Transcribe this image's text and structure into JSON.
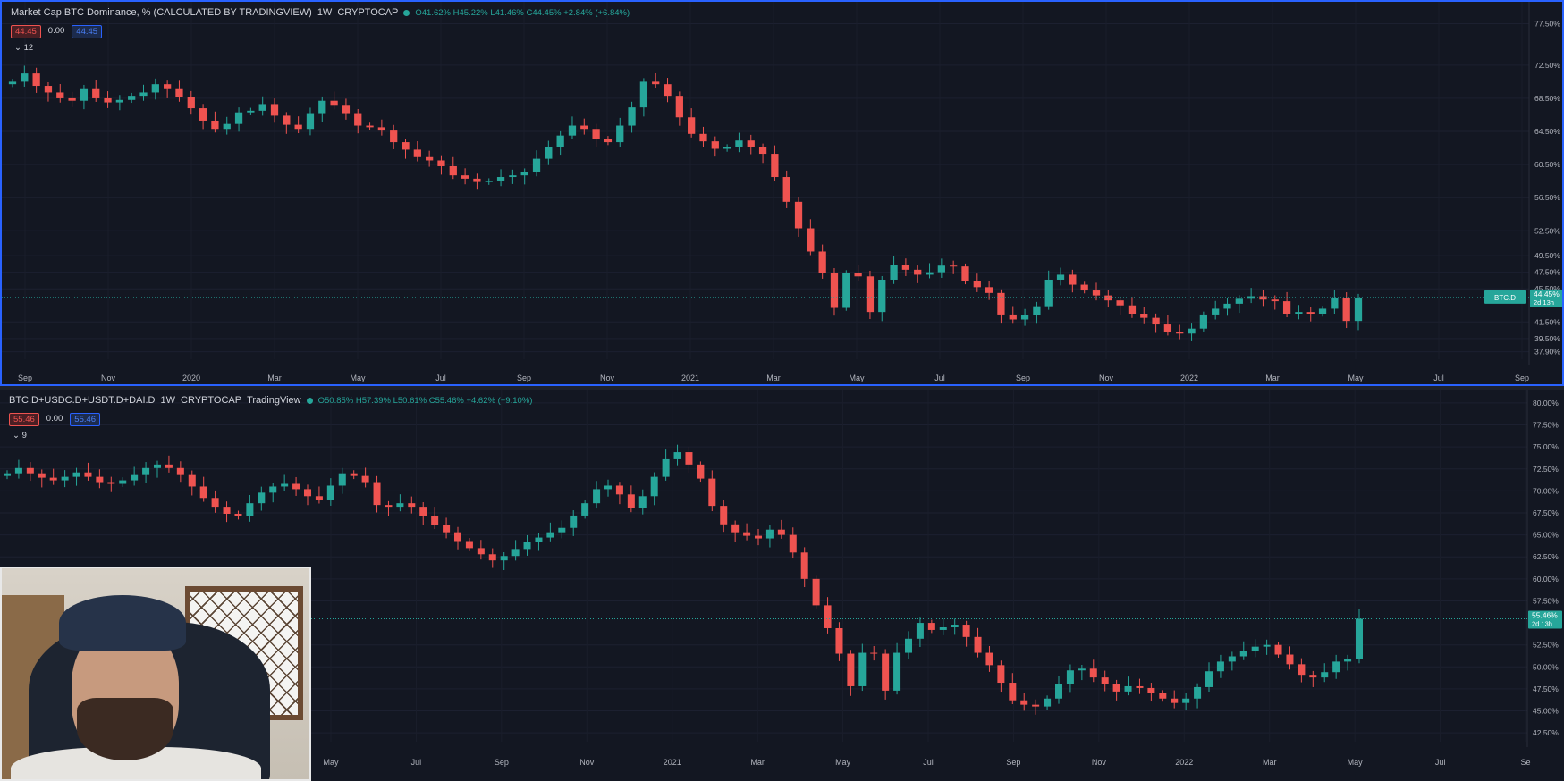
{
  "pane1": {
    "title": "Market Cap BTC Dominance, % (CALCULATED BY TRADINGVIEW)",
    "interval": "1W",
    "source": "CRYPTOCAP",
    "ohlc": "O41.62% H45.22% L41.46% C44.45% +2.84% (+6.84%)",
    "val_red": "44.45",
    "val_zero": "0.00",
    "val_blue": "44.45",
    "indicator": "12",
    "price_tag": "BTC.D",
    "price_tag_value": "44.45%",
    "price_tag_countdown": "2d 13h"
  },
  "pane2": {
    "title": "BTC.D+USDC.D+USDT.D+DAI.D",
    "interval": "1W",
    "source": "CRYPTOCAP",
    "extra": "TradingView",
    "ohlc": "O50.85% H57.39% L50.61% C55.46% +4.62% (+9.10%)",
    "val_red": "55.46",
    "val_zero": "0.00",
    "val_blue": "55.46",
    "indicator": "9",
    "price_tag_value": "55.46%",
    "price_tag_countdown": "2d 13h"
  },
  "colors": {
    "up": "#26a69a",
    "down": "#ef5350",
    "background": "#131722",
    "axis_text": "#b2b5be",
    "selection": "#2962ff"
  },
  "chart_data": [
    {
      "type": "candlestick",
      "title": "Market Cap BTC Dominance, % (CALCULATED BY TRADINGVIEW)",
      "interval": "1W",
      "x_tick_labels": [
        "Sep",
        "Nov",
        "2020",
        "Mar",
        "May",
        "Jul",
        "Sep",
        "Nov",
        "2021",
        "Mar",
        "May",
        "Jul",
        "Sep",
        "Nov",
        "2022",
        "Mar",
        "May",
        "Jul",
        "Sep"
      ],
      "y_tick_labels": [
        "77.50%",
        "72.50%",
        "68.50%",
        "64.50%",
        "60.50%",
        "56.50%",
        "52.50%",
        "49.50%",
        "47.50%",
        "45.50%",
        "41.50%",
        "39.50%",
        "37.90%"
      ],
      "y_ticks": [
        77.5,
        72.5,
        68.5,
        64.5,
        60.5,
        56.5,
        52.5,
        49.5,
        47.5,
        45.5,
        41.5,
        39.5,
        37.9
      ],
      "ylim": [
        37.0,
        78.2
      ],
      "close_series": [
        70.5,
        71.5,
        70,
        69.2,
        68.5,
        68.2,
        69.6,
        68.5,
        68,
        68.3,
        68.8,
        69.2,
        70.2,
        69.6,
        68.6,
        67.3,
        65.8,
        64.8,
        65.4,
        66.8,
        67,
        67.8,
        66.4,
        65.3,
        64.8,
        66.6,
        68.2,
        67.6,
        66.6,
        65.2,
        65,
        64.6,
        63.2,
        62.3,
        61.4,
        61,
        60.3,
        59.2,
        58.8,
        58.4,
        58.5,
        59,
        59.2,
        59.6,
        61.2,
        62.6,
        64,
        65.2,
        64.8,
        63.6,
        63.2,
        65.2,
        67.4,
        70.5,
        70.2,
        68.8,
        66.2,
        64.2,
        63.3,
        62.4,
        62.6,
        63.4,
        62.6,
        61.8,
        59,
        56,
        52.8,
        50,
        47.4,
        43.2,
        47.4,
        47,
        42.7,
        46.6,
        48.4,
        47.8,
        47.2,
        47.5,
        48.3,
        48.2,
        46.4,
        45.7,
        45,
        42.4,
        41.8,
        42.3,
        43.4,
        46.6,
        47.2,
        46,
        45.3,
        44.7,
        44.1,
        43.5,
        42.5,
        42,
        41.2,
        40.3,
        40.1,
        40.7,
        42.4,
        43.1,
        43.7,
        44.3,
        44.6,
        44.2,
        44,
        42.5,
        42.7,
        42.5,
        43.1,
        44.4,
        41.62,
        44.45
      ],
      "last_close": 44.45
    },
    {
      "type": "candlestick",
      "title": "BTC.D+USDC.D+USDT.D+DAI.D",
      "interval": "1W",
      "x_tick_labels": [
        "May",
        "Jul",
        "Sep",
        "Nov",
        "2021",
        "Mar",
        "May",
        "Jul",
        "Sep",
        "Nov",
        "2022",
        "Mar",
        "May",
        "Jul",
        "Se"
      ],
      "y_tick_labels": [
        "80.00%",
        "77.50%",
        "75.00%",
        "72.50%",
        "70.00%",
        "67.50%",
        "65.00%",
        "62.50%",
        "60.00%",
        "57.50%",
        "52.50%",
        "50.00%",
        "47.50%",
        "45.00%",
        "42.50%"
      ],
      "y_ticks": [
        80,
        77.5,
        75,
        72.5,
        70,
        67.5,
        65,
        62.5,
        60,
        57.5,
        52.5,
        50,
        47.5,
        45,
        42.5
      ],
      "ylim": [
        41.5,
        80.5
      ],
      "close_series": [
        72,
        72.6,
        72,
        71.5,
        71.2,
        71.6,
        72.1,
        71.6,
        71,
        70.8,
        71.2,
        71.8,
        72.6,
        73,
        72.6,
        71.8,
        70.5,
        69.2,
        68.2,
        67.4,
        67.1,
        68.6,
        69.8,
        70.5,
        70.8,
        70.2,
        69.4,
        69,
        70.6,
        72,
        71.7,
        71,
        68.4,
        68.2,
        68.6,
        68.2,
        67.1,
        66.1,
        65.3,
        64.3,
        63.5,
        62.8,
        62.1,
        62.6,
        63.4,
        64.2,
        64.7,
        65.3,
        65.8,
        67.2,
        68.6,
        70.2,
        70.6,
        69.6,
        68.1,
        69.4,
        71.6,
        73.6,
        74.4,
        73,
        71.4,
        68.3,
        66.2,
        65.3,
        64.9,
        64.6,
        65.6,
        65,
        63,
        60,
        57,
        54.4,
        51.5,
        47.8,
        51.6,
        51.5,
        47.3,
        51.6,
        53.2,
        55,
        54.2,
        54.5,
        54.8,
        53.4,
        51.6,
        50.2,
        48.2,
        46.2,
        45.7,
        45.5,
        46.4,
        48,
        49.6,
        49.8,
        48.8,
        48,
        47.2,
        47.8,
        47.6,
        47,
        46.4,
        45.9,
        46.4,
        47.7,
        49.5,
        50.6,
        51.2,
        51.8,
        52.3,
        52.5,
        51.4,
        50.3,
        49.1,
        48.8,
        49.4,
        50.6,
        50.85,
        55.46
      ],
      "last_close": 55.46
    }
  ]
}
